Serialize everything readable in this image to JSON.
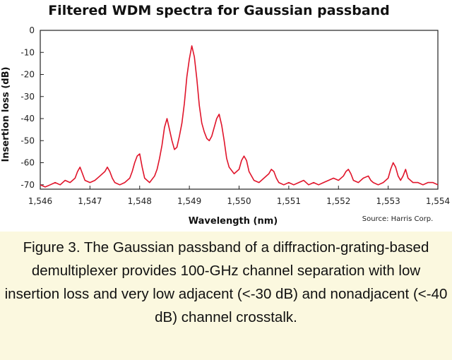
{
  "chart_data": {
    "type": "line",
    "title": "Filtered WDM spectra for Gaussian passband",
    "xlabel": "Wavelength (nm)",
    "ylabel": "Insertion loss (dB)",
    "xlim": [
      1546,
      1554
    ],
    "ylim": [
      -72,
      0
    ],
    "xticks": [
      "1,546",
      "1,547",
      "1,548",
      "1,549",
      "1,550",
      "1,551",
      "1,552",
      "1,553",
      "1,554"
    ],
    "yticks": [
      "0",
      "-10",
      "-20",
      "-30",
      "-40",
      "-50",
      "-60",
      "-70"
    ],
    "grid": false,
    "series": [
      {
        "color": "#e0142a",
        "x": [
          1546.0,
          1546.1,
          1546.2,
          1546.3,
          1546.4,
          1546.5,
          1546.6,
          1546.7,
          1546.75,
          1546.8,
          1546.85,
          1546.9,
          1547.0,
          1547.1,
          1547.2,
          1547.3,
          1547.35,
          1547.4,
          1547.45,
          1547.5,
          1547.6,
          1547.7,
          1547.8,
          1547.85,
          1547.9,
          1547.95,
          1548.0,
          1548.05,
          1548.1,
          1548.2,
          1548.3,
          1548.35,
          1548.4,
          1548.45,
          1548.5,
          1548.55,
          1548.6,
          1548.65,
          1548.7,
          1548.75,
          1548.8,
          1548.85,
          1548.9,
          1548.95,
          1549.0,
          1549.05,
          1549.1,
          1549.15,
          1549.2,
          1549.25,
          1549.3,
          1549.35,
          1549.4,
          1549.45,
          1549.5,
          1549.55,
          1549.6,
          1549.65,
          1549.7,
          1549.75,
          1549.8,
          1549.9,
          1550.0,
          1550.05,
          1550.1,
          1550.15,
          1550.2,
          1550.3,
          1550.4,
          1550.5,
          1550.6,
          1550.65,
          1550.7,
          1550.75,
          1550.8,
          1550.9,
          1551.0,
          1551.1,
          1551.2,
          1551.3,
          1551.4,
          1551.5,
          1551.6,
          1551.7,
          1551.8,
          1551.9,
          1552.0,
          1552.1,
          1552.15,
          1552.2,
          1552.25,
          1552.3,
          1552.4,
          1552.5,
          1552.6,
          1552.65,
          1552.7,
          1552.8,
          1552.9,
          1553.0,
          1553.05,
          1553.1,
          1553.15,
          1553.2,
          1553.25,
          1553.3,
          1553.35,
          1553.4,
          1553.5,
          1553.6,
          1553.7,
          1553.8,
          1553.9,
          1554.0
        ],
        "values": [
          -70,
          -71,
          -70,
          -69,
          -70,
          -68,
          -69,
          -67,
          -64,
          -62,
          -65,
          -68,
          -69,
          -68,
          -66,
          -64,
          -62,
          -64,
          -67,
          -69,
          -70,
          -69,
          -67,
          -64,
          -60,
          -57,
          -56,
          -62,
          -67,
          -69,
          -66,
          -63,
          -58,
          -52,
          -44,
          -40,
          -45,
          -50,
          -54,
          -53,
          -48,
          -42,
          -33,
          -21,
          -13,
          -7,
          -12,
          -22,
          -34,
          -42,
          -46,
          -49,
          -50,
          -48,
          -44,
          -40,
          -38,
          -43,
          -50,
          -58,
          -62,
          -65,
          -63,
          -59,
          -57,
          -59,
          -64,
          -68,
          -69,
          -67,
          -65,
          -63,
          -64,
          -67,
          -69,
          -70,
          -69,
          -70,
          -69,
          -68,
          -70,
          -69,
          -70,
          -69,
          -68,
          -67,
          -68,
          -66,
          -64,
          -63,
          -65,
          -68,
          -69,
          -67,
          -66,
          -68,
          -69,
          -70,
          -69,
          -67,
          -63,
          -60,
          -62,
          -66,
          -68,
          -66,
          -63,
          -67,
          -69,
          -69,
          -70,
          -69,
          -69,
          -70
        ]
      }
    ],
    "source": "Source: Harris Corp."
  },
  "caption": "Figure 3. The Gaussian passband of a diffraction-grating-based demultiplexer provides 100-GHz channel separation with low insertion loss and very low adjacent (<-30 dB) and nonadjacent (<-40 dB) channel crosstalk."
}
